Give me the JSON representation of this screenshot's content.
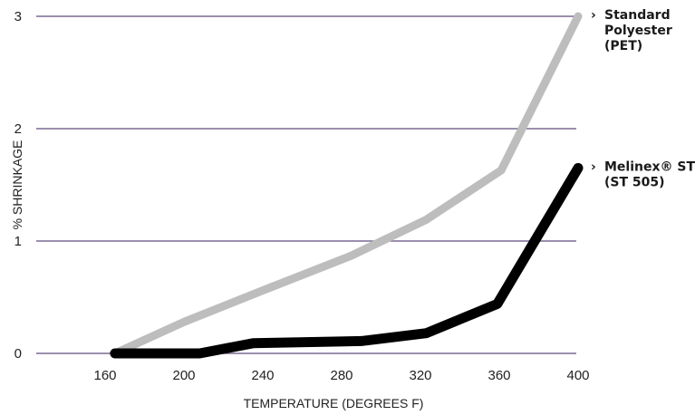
{
  "chart_data": {
    "type": "line",
    "title": "",
    "xlabel": "TEMPERATURE (DEGREES F)",
    "ylabel": "% SHRINKAGE",
    "x": [
      160,
      200,
      240,
      280,
      320,
      360,
      400
    ],
    "xlim": [
      160,
      400
    ],
    "ylim": [
      0,
      3
    ],
    "x_ticks": [
      "160",
      "200",
      "240",
      "280",
      "320",
      "360",
      "400"
    ],
    "y_ticks": [
      "0",
      "1",
      "2",
      "3"
    ],
    "grid": "horizontal",
    "legend_placement": "right, at line ends",
    "series": [
      {
        "name": "Standard Polyester (PET)",
        "label_lines": [
          "Standard",
          "Polyester",
          "(PET)"
        ],
        "color": "#bdbdbd",
        "x": [
          165,
          200,
          240,
          285,
          323,
          361,
          400
        ],
        "values": [
          0,
          0.28,
          0.56,
          0.87,
          1.19,
          1.63,
          3.0
        ]
      },
      {
        "name": "Melinex® ST (ST 505)",
        "label_lines": [
          "Melinex® ST",
          "(ST 505)"
        ],
        "color": "#000000",
        "x": [
          165,
          208,
          235,
          290,
          323,
          359,
          400
        ],
        "values": [
          0,
          0,
          0.09,
          0.11,
          0.18,
          0.44,
          1.65
        ]
      }
    ],
    "gridline_color": "#7a6a94",
    "axis_color": "#7a6a94"
  }
}
